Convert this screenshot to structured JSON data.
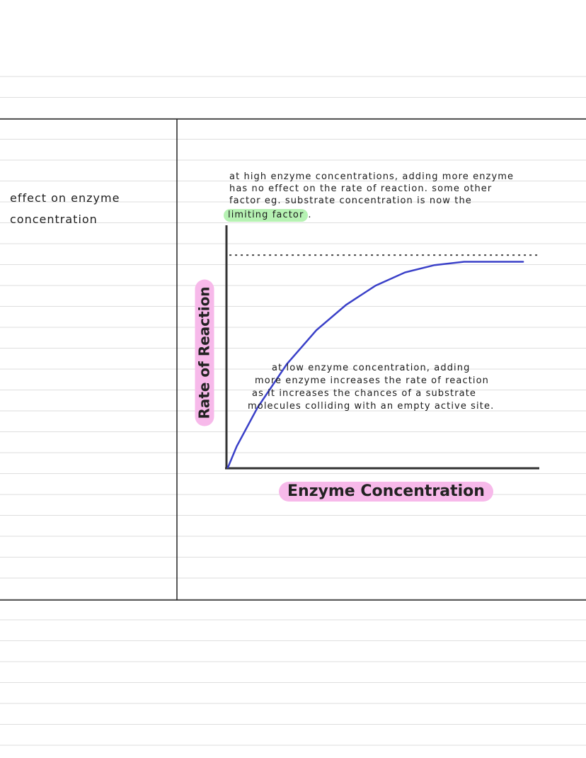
{
  "left_column": {
    "line1": "effect on enzyme",
    "line2": "concentration"
  },
  "notes": {
    "high_line1": "at high enzyme concentrations, adding more enzyme",
    "high_line2": "has  no effect on the rate of reaction. some other",
    "high_line3": "factor eg. substrate concentration is now the",
    "high_highlight": "limiting factor",
    "high_end": ".",
    "low_line1": "at low enzyme concentration, adding",
    "low_line2": "more enzyme increases the rate of reaction",
    "low_line3": "as it increases the chances of a substrate",
    "low_line4": "molecules colliding with an empty active site."
  },
  "chart_data": {
    "type": "line",
    "xlabel": "Enzyme Concentration",
    "ylabel": "Rate of Reaction",
    "series": [
      {
        "values": [
          [
            0,
            0
          ],
          [
            0.3,
            3.2
          ],
          [
            1,
            9.0
          ],
          [
            2,
            15.6
          ],
          [
            3,
            20.7
          ],
          [
            4,
            24.5
          ],
          [
            5,
            27.4
          ],
          [
            6,
            29.4
          ],
          [
            7,
            30.5
          ],
          [
            8,
            31.0
          ],
          [
            9,
            31.0
          ],
          [
            10,
            31.0
          ]
        ]
      }
    ],
    "reference_line": {
      "y": 32,
      "style": "dashed"
    },
    "xlim": [
      0,
      10.5
    ],
    "ylim": [
      0,
      35
    ],
    "colors": {
      "curve": "#3a40c8",
      "axes": "#333333",
      "green_highlight": "#b6f2b3",
      "pink_highlight": "#f7b9ea"
    }
  }
}
